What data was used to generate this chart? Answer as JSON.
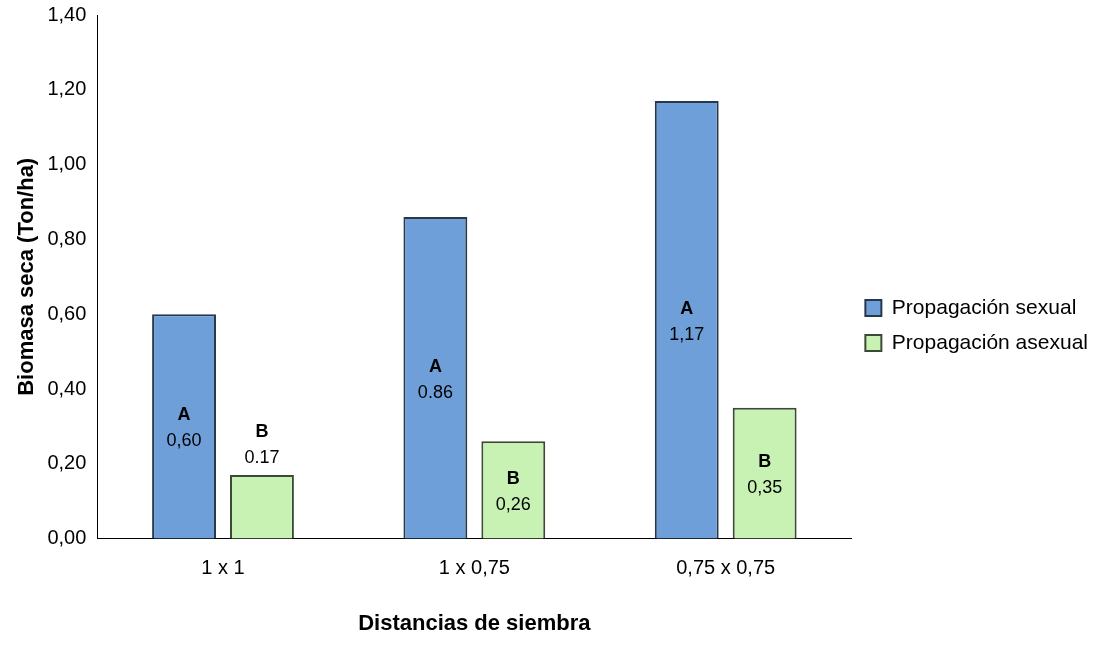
{
  "chart_data": {
    "type": "bar",
    "xlabel": "Distancias de siembra",
    "ylabel": "Biomasa seca (Ton/ha)",
    "categories": [
      "1 x 1",
      "1 x 0,75",
      "0,75 x 0,75"
    ],
    "series": [
      {
        "name": "Propagación sexual",
        "color": "#6f9fd8",
        "values": [
          0.6,
          0.86,
          1.17
        ],
        "value_labels": [
          "A\n0,60",
          "A\n0.86",
          "A\n1,17"
        ]
      },
      {
        "name": "Propagación asexual",
        "color": "#c8f2b4",
        "values": [
          0.17,
          0.26,
          0.35
        ],
        "value_labels": [
          "B\n0.17",
          "B\n0,26",
          "B\n0,35"
        ]
      }
    ],
    "ylim": [
      0,
      1.4
    ],
    "yticks": [
      {
        "value": 0,
        "label": "0,00"
      },
      {
        "value": 0.2,
        "label": "0,20"
      },
      {
        "value": 0.4,
        "label": "0,40"
      },
      {
        "value": 0.6,
        "label": "0,60"
      },
      {
        "value": 0.8,
        "label": "0,80"
      },
      {
        "value": 1.0,
        "label": "1,00"
      },
      {
        "value": 1.2,
        "label": "1,20"
      },
      {
        "value": 1.4,
        "label": "1,40"
      }
    ],
    "grid": false,
    "legend": "right"
  }
}
